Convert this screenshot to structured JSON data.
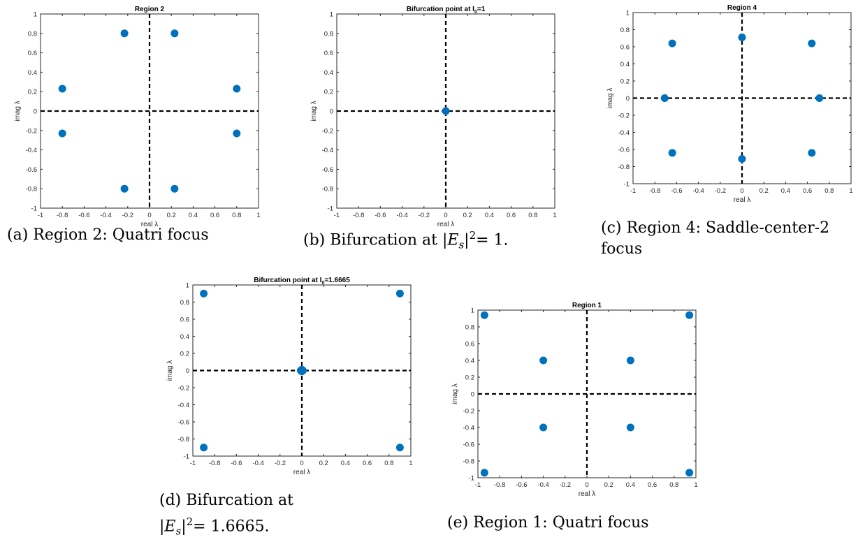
{
  "chart_data": [
    {
      "id": "a",
      "type": "scatter",
      "title": "Region 2",
      "xlabel": "real λ",
      "ylabel": "imag λ",
      "xlim": [
        -1,
        1
      ],
      "ylim": [
        -1,
        1
      ],
      "xticks": [
        -1,
        -0.8,
        -0.6,
        -0.4,
        -0.2,
        0,
        0.2,
        0.4,
        0.6,
        0.8,
        1
      ],
      "yticks": [
        -1,
        -0.8,
        -0.6,
        -0.4,
        -0.2,
        0,
        0.2,
        0.4,
        0.6,
        0.8,
        1
      ],
      "grid": false,
      "reference_lines": {
        "x": 0,
        "y": 0
      },
      "marker_color": "#0072BD",
      "x": [
        -0.23,
        0.23,
        -0.8,
        0.8,
        -0.8,
        0.8,
        -0.23,
        0.23
      ],
      "y": [
        0.8,
        0.8,
        0.23,
        0.23,
        -0.23,
        -0.23,
        -0.8,
        -0.8
      ],
      "caption": "(a) Region 2: Quatri focus"
    },
    {
      "id": "b",
      "type": "scatter",
      "title": "Bifurcation point at I",
      "title_sub": "0",
      "title_tail": "=1",
      "xlabel": "real λ",
      "ylabel": "imag λ",
      "xlim": [
        -1,
        1
      ],
      "ylim": [
        -1,
        1
      ],
      "xticks": [
        -1,
        -0.8,
        -0.6,
        -0.4,
        -0.2,
        0,
        0.2,
        0.4,
        0.6,
        0.8,
        1
      ],
      "yticks": [
        -1,
        -0.8,
        -0.6,
        -0.4,
        -0.2,
        0,
        0.2,
        0.4,
        0.6,
        0.8,
        1
      ],
      "grid": false,
      "reference_lines": {
        "x": 0,
        "y": 0
      },
      "marker_color": "#0072BD",
      "x": [
        0
      ],
      "y": [
        0
      ],
      "caption_pre": "(b) Bifurcation at ",
      "caption_math": "|E",
      "caption_sub": "s",
      "caption_close": "|",
      "caption_sup": "2",
      "caption_post": "= 1."
    },
    {
      "id": "c",
      "type": "scatter",
      "title": "Region 4",
      "xlabel": "real λ",
      "ylabel": "imag λ",
      "xlim": [
        -1,
        1
      ],
      "ylim": [
        -1,
        1
      ],
      "xticks": [
        -1,
        -0.8,
        -0.6,
        -0.4,
        -0.2,
        0,
        0.2,
        0.4,
        0.6,
        0.8,
        1
      ],
      "yticks": [
        -1,
        -0.8,
        -0.6,
        -0.4,
        -0.2,
        0,
        0.2,
        0.4,
        0.6,
        0.8,
        1
      ],
      "grid": false,
      "reference_lines": {
        "x": 0,
        "y": 0
      },
      "marker_color": "#0072BD",
      "x": [
        -0.64,
        0.64,
        0,
        -0.71,
        0.71,
        -0.64,
        0.64,
        0
      ],
      "y": [
        0.64,
        0.64,
        0.71,
        0,
        0,
        -0.64,
        -0.64,
        -0.71
      ],
      "caption_line1": "(c) Region 4: Saddle-center-2",
      "caption_line2": "focus"
    },
    {
      "id": "d",
      "type": "scatter",
      "title": "Bifurcation point at I",
      "title_sub": "0",
      "title_tail": "=1.6665",
      "xlabel": "real λ",
      "ylabel": "imag λ",
      "xlim": [
        -1,
        1
      ],
      "ylim": [
        -1,
        1
      ],
      "xticks": [
        -1,
        -0.8,
        -0.6,
        -0.4,
        -0.2,
        0,
        0.2,
        0.4,
        0.6,
        0.8,
        1
      ],
      "yticks": [
        -1,
        -0.8,
        -0.6,
        -0.4,
        -0.2,
        0,
        0.2,
        0.4,
        0.6,
        0.8,
        1
      ],
      "grid": false,
      "reference_lines": {
        "x": 0,
        "y": 0
      },
      "marker_color": "#0072BD",
      "x": [
        -0.9,
        0.9,
        0,
        0.01,
        -0.01,
        0,
        -0.9,
        0.9
      ],
      "y": [
        0.9,
        0.9,
        0.01,
        0,
        0,
        -0.01,
        -0.9,
        -0.9
      ],
      "caption_line1": "(d) Bifurcation at",
      "caption_math": "|E",
      "caption_sub": "s",
      "caption_close": "|",
      "caption_sup": "2",
      "caption_post": "= 1.6665."
    },
    {
      "id": "e",
      "type": "scatter",
      "title": "Region 1",
      "xlabel": "real λ",
      "ylabel": "imag λ",
      "xlim": [
        -1,
        1
      ],
      "ylim": [
        -1,
        1
      ],
      "xticks": [
        -1,
        -0.8,
        -0.6,
        -0.4,
        -0.2,
        0,
        0.2,
        0.4,
        0.6,
        0.8,
        1
      ],
      "yticks": [
        -1,
        -0.8,
        -0.6,
        -0.4,
        -0.2,
        0,
        0.2,
        0.4,
        0.6,
        0.8,
        1
      ],
      "grid": false,
      "reference_lines": {
        "x": 0,
        "y": 0
      },
      "marker_color": "#0072BD",
      "x": [
        -0.94,
        0.94,
        -0.4,
        0.4,
        -0.4,
        0.4,
        -0.94,
        0.94
      ],
      "y": [
        0.94,
        0.94,
        0.4,
        0.4,
        -0.4,
        -0.4,
        -0.94,
        -0.94
      ],
      "caption": "(e) Region 1: Quatri focus"
    }
  ]
}
